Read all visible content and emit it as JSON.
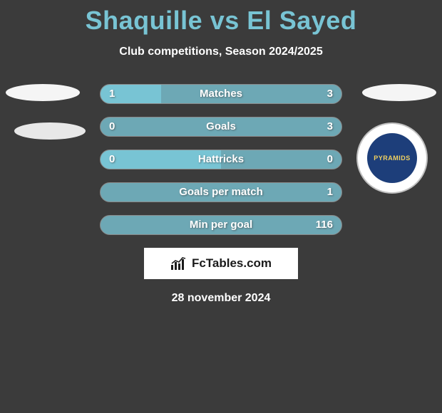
{
  "title": "Shaquille vs El Sayed",
  "subtitle": "Club competitions, Season 2024/2025",
  "date": "28 november 2024",
  "brand": "FcTables.com",
  "colors": {
    "background": "#3b3b3b",
    "accent": "#78c4d4",
    "bar_light": "#78c4d4",
    "bar_dark": "#6da8b5",
    "text": "#ffffff"
  },
  "badge_right": {
    "label": "PYRAMIDS",
    "bg": "#1d3e7a",
    "text_color": "#f0d060"
  },
  "bars": [
    {
      "label": "Matches",
      "left_val": "1",
      "right_val": "3",
      "left_pct": 25,
      "right_pct": 75
    },
    {
      "label": "Goals",
      "left_val": "0",
      "right_val": "3",
      "left_pct": 0,
      "right_pct": 100
    },
    {
      "label": "Hattricks",
      "left_val": "0",
      "right_val": "0",
      "left_pct": 50,
      "right_pct": 50
    },
    {
      "label": "Goals per match",
      "left_val": "",
      "right_val": "1",
      "left_pct": 0,
      "right_pct": 100
    },
    {
      "label": "Min per goal",
      "left_val": "",
      "right_val": "116",
      "left_pct": 0,
      "right_pct": 100
    }
  ]
}
